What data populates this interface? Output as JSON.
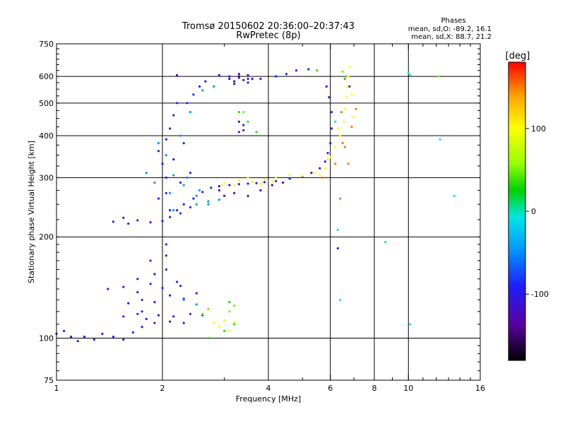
{
  "header": {
    "title_line1": "Tromsø 20150602 20:36:00–20:37:43",
    "title_line2": "RwPretec (8p)",
    "stats_title": "Phases",
    "stats_o": "mean, sd,O:  -89.2, 16.1",
    "stats_x": "mean, sd,X:   88.7, 21.2"
  },
  "chart_data": {
    "type": "scatter",
    "xlabel": "Frequency [MHz]",
    "ylabel": "Stationary phase Virtual Height [km]",
    "x_scale": "log",
    "y_scale": "log",
    "xlim": [
      1,
      16
    ],
    "ylim": [
      75,
      750
    ],
    "x_ticks": [
      1,
      2,
      4,
      6,
      8,
      10,
      16
    ],
    "x_tick_labels": [
      "1",
      "2",
      "4",
      "6",
      "8",
      "10",
      "16"
    ],
    "x_gridlines": [
      2,
      4,
      6,
      8,
      10
    ],
    "y_ticks": [
      75,
      100,
      200,
      300,
      400,
      500,
      600,
      750
    ],
    "y_tick_labels": [
      "75",
      "100",
      "200",
      "300",
      "400",
      "500",
      "600",
      "750"
    ],
    "y_gridlines": [
      100,
      200,
      300,
      400,
      500,
      600
    ],
    "grid": true,
    "colorbar": {
      "label": "[deg]",
      "range": [
        -180,
        180
      ],
      "ticks": [
        100,
        0,
        -100
      ],
      "tick_labels": [
        "100",
        "0",
        "-100"
      ],
      "colors": [
        "#000000",
        "#5a00a0",
        "#1e1eff",
        "#0096ff",
        "#00e6e6",
        "#00d200",
        "#96ff00",
        "#ffff00",
        "#ffa000",
        "#ff0000"
      ]
    },
    "series": [
      {
        "phase": -100,
        "points": [
          [
            1.0,
            103
          ],
          [
            1.05,
            105
          ],
          [
            1.1,
            101
          ],
          [
            1.15,
            98
          ],
          [
            1.2,
            101
          ],
          [
            1.28,
            99
          ],
          [
            1.35,
            103
          ],
          [
            1.45,
            101
          ],
          [
            1.55,
            99
          ],
          [
            1.65,
            104
          ],
          [
            1.75,
            108
          ],
          [
            1.9,
            111
          ],
          [
            2.1,
            112
          ],
          [
            2.3,
            111
          ],
          [
            1.55,
            116
          ],
          [
            1.7,
            118
          ],
          [
            1.8,
            114
          ],
          [
            1.95,
            117
          ],
          [
            2.15,
            116
          ],
          [
            2.4,
            118
          ],
          [
            2.6,
            117
          ],
          [
            1.6,
            127
          ],
          [
            1.75,
            130
          ],
          [
            1.9,
            128
          ],
          [
            2.1,
            134
          ],
          [
            2.3,
            131
          ],
          [
            2.5,
            136
          ],
          [
            1.4,
            140
          ],
          [
            1.55,
            142
          ],
          [
            1.7,
            137
          ],
          [
            1.85,
            145
          ],
          [
            2.0,
            141
          ],
          [
            2.25,
            143
          ],
          [
            1.7,
            150
          ],
          [
            1.9,
            155
          ],
          [
            2.05,
            160
          ],
          [
            1.85,
            170
          ],
          [
            2.05,
            176
          ],
          [
            2.05,
            190
          ],
          [
            1.45,
            222
          ],
          [
            1.55,
            228
          ],
          [
            1.6,
            219
          ],
          [
            1.7,
            224
          ],
          [
            1.85,
            221
          ],
          [
            2.0,
            223
          ],
          [
            2.1,
            229
          ],
          [
            2.2,
            240
          ],
          [
            2.3,
            250
          ],
          [
            2.45,
            260
          ],
          [
            2.6,
            272
          ],
          [
            2.75,
            280
          ],
          [
            2.9,
            283
          ],
          [
            3.1,
            285
          ],
          [
            3.3,
            287
          ],
          [
            3.5,
            288
          ],
          [
            3.7,
            289
          ],
          [
            3.9,
            291
          ],
          [
            4.2,
            293
          ],
          [
            4.6,
            298
          ],
          [
            5.0,
            302
          ],
          [
            5.3,
            310
          ],
          [
            5.6,
            320
          ],
          [
            5.8,
            335
          ],
          [
            5.9,
            355
          ],
          [
            6.0,
            380
          ],
          [
            6.05,
            420
          ],
          [
            6.05,
            470
          ],
          [
            5.95,
            520
          ],
          [
            5.85,
            560
          ],
          [
            1.95,
            260
          ],
          [
            2.05,
            300
          ],
          [
            2.0,
            330
          ],
          [
            1.95,
            360
          ],
          [
            2.05,
            390
          ],
          [
            2.1,
            420
          ],
          [
            2.15,
            460
          ],
          [
            2.2,
            500
          ],
          [
            2.05,
            270
          ],
          [
            2.25,
            290
          ],
          [
            2.15,
            340
          ],
          [
            2.3,
            380
          ],
          [
            2.4,
            310
          ],
          [
            2.35,
            500
          ],
          [
            2.45,
            530
          ],
          [
            2.55,
            560
          ],
          [
            2.65,
            580
          ],
          [
            2.9,
            605
          ],
          [
            3.1,
            600
          ],
          [
            3.3,
            595
          ],
          [
            3.5,
            590
          ],
          [
            3.2,
            570
          ],
          [
            3.5,
            575
          ],
          [
            3.8,
            590
          ],
          [
            4.2,
            600
          ],
          [
            4.5,
            610
          ],
          [
            3.4,
            430
          ],
          [
            3.3,
            410
          ],
          [
            2.2,
            605
          ],
          [
            1.75,
            120
          ],
          [
            2.2,
            147
          ],
          [
            6.3,
            185
          ],
          [
            6.8,
            560
          ],
          [
            6.6,
            590
          ],
          [
            2.1,
            240
          ],
          [
            2.25,
            235
          ],
          [
            2.4,
            245
          ],
          [
            4.8,
            625
          ],
          [
            5.2,
            630
          ]
        ]
      },
      {
        "phase": -60,
        "points": [
          [
            1.8,
            310
          ],
          [
            1.9,
            290
          ],
          [
            2.1,
            270
          ],
          [
            2.3,
            285
          ],
          [
            2.5,
            265
          ],
          [
            2.7,
            250
          ],
          [
            2.35,
            300
          ],
          [
            2.55,
            275
          ],
          [
            2.05,
            350
          ],
          [
            2.15,
            305
          ],
          [
            2.8,
            560
          ],
          [
            2.6,
            545
          ],
          [
            2.4,
            470
          ],
          [
            2.25,
            400
          ],
          [
            1.95,
            380
          ],
          [
            2.5,
            250
          ],
          [
            2.7,
            255
          ],
          [
            2.9,
            258
          ],
          [
            2.3,
            130
          ],
          [
            2.5,
            126
          ],
          [
            2.15,
            240
          ]
        ]
      },
      {
        "phase": -140,
        "points": [
          [
            3.1,
            590
          ],
          [
            3.3,
            610
          ],
          [
            3.5,
            605
          ],
          [
            3.2,
            580
          ],
          [
            3.4,
            585
          ],
          [
            3.6,
            590
          ],
          [
            3.3,
            440
          ],
          [
            3.4,
            415
          ],
          [
            3.2,
            270
          ],
          [
            3.5,
            265
          ],
          [
            3.8,
            275
          ],
          [
            4.1,
            285
          ],
          [
            4.4,
            290
          ],
          [
            2.9,
            275
          ],
          [
            3.0,
            265
          ],
          [
            3.3,
            600
          ]
        ]
      },
      {
        "phase": 30,
        "points": [
          [
            2.7,
            100
          ],
          [
            3.0,
            105
          ],
          [
            3.2,
            110
          ],
          [
            3.1,
            128
          ],
          [
            3.3,
            470
          ],
          [
            3.5,
            440
          ],
          [
            3.7,
            410
          ],
          [
            6.6,
            590
          ],
          [
            5.5,
            625
          ]
        ]
      },
      {
        "phase": 100,
        "points": [
          [
            2.8,
            111
          ],
          [
            3.0,
            113
          ],
          [
            3.2,
            112
          ],
          [
            3.1,
            105
          ],
          [
            2.9,
            108
          ],
          [
            3.0,
            290
          ],
          [
            3.3,
            295
          ],
          [
            3.6,
            292
          ],
          [
            3.9,
            297
          ],
          [
            4.2,
            301
          ],
          [
            4.6,
            305
          ],
          [
            5.0,
            304
          ],
          [
            5.4,
            310
          ],
          [
            5.8,
            320
          ],
          [
            6.0,
            345
          ],
          [
            6.2,
            370
          ],
          [
            6.4,
            400
          ],
          [
            6.55,
            440
          ],
          [
            6.6,
            480
          ],
          [
            6.65,
            520
          ],
          [
            6.7,
            560
          ],
          [
            6.75,
            600
          ],
          [
            6.8,
            640
          ],
          [
            3.2,
            285
          ],
          [
            3.5,
            300
          ],
          [
            3.8,
            288
          ],
          [
            4.1,
            293
          ],
          [
            5.6,
            305
          ],
          [
            5.9,
            340
          ],
          [
            6.3,
            420
          ],
          [
            2.95,
            285
          ],
          [
            6.9,
            530
          ],
          [
            7.0,
            455
          ]
        ]
      },
      {
        "phase": 150,
        "points": [
          [
            5.7,
            300
          ],
          [
            6.2,
            330
          ],
          [
            6.5,
            380
          ],
          [
            6.9,
            425
          ],
          [
            6.45,
            470
          ],
          [
            7.1,
            480
          ],
          [
            6.4,
            260
          ],
          [
            6.6,
            370
          ],
          [
            6.75,
            330
          ]
        ]
      },
      {
        "phase": 50,
        "points": [
          [
            2.6,
            118
          ],
          [
            2.7,
            122
          ],
          [
            3.1,
            120
          ],
          [
            3.2,
            125
          ],
          [
            3.4,
            470
          ],
          [
            6.5,
            620
          ],
          [
            12.2,
            600
          ]
        ]
      },
      {
        "phase": -20,
        "points": [
          [
            10.0,
            615
          ],
          [
            10.1,
            605
          ],
          [
            13.5,
            265
          ],
          [
            12.3,
            390
          ],
          [
            10.1,
            110
          ],
          [
            6.4,
            130
          ],
          [
            8.6,
            193
          ],
          [
            6.2,
            440
          ],
          [
            6.3,
            210
          ]
        ]
      }
    ]
  }
}
